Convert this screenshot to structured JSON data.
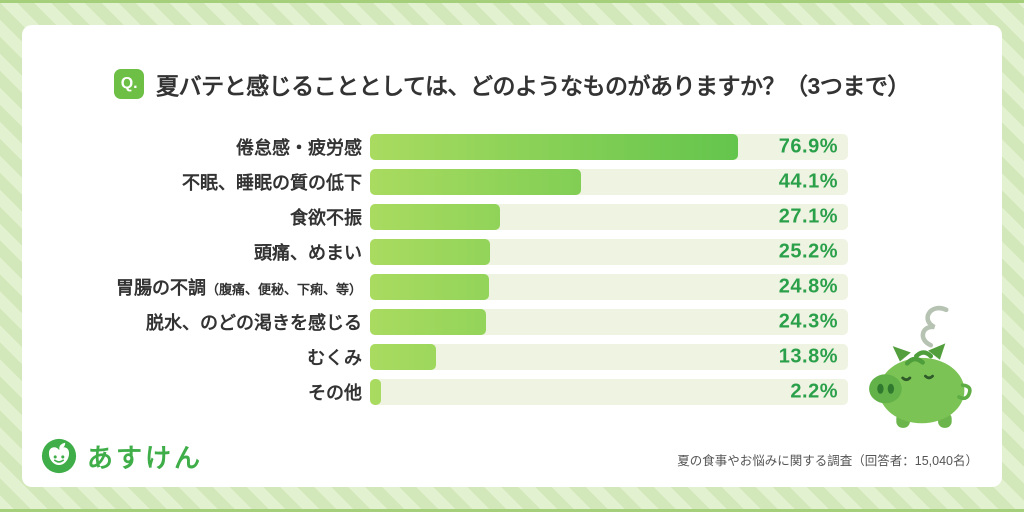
{
  "header": {
    "q_badge": "Q.",
    "title": "夏バテと感じることとしては、どのようなものがありますか？（3つまで）"
  },
  "chart_data": {
    "type": "bar",
    "orientation": "horizontal",
    "title": "夏バテと感じることとしては、どのようなものがありますか？（3つまで）",
    "categories": [
      "倦怠感・疲労感",
      "不眠、睡眠の質の低下",
      "食欲不振",
      "頭痛、めまい",
      "胃腸の不調（腹痛、便秘、下痢、等）",
      "脱水、のどの渇きを感じる",
      "むくみ",
      "その他"
    ],
    "values": [
      76.9,
      44.1,
      27.1,
      25.2,
      24.8,
      24.3,
      13.8,
      2.2
    ],
    "value_labels": [
      "76.9%",
      "44.1%",
      "27.1%",
      "25.2%",
      "24.8%",
      "24.3%",
      "13.8%",
      "2.2%"
    ],
    "xlim": [
      0,
      100
    ],
    "grid": false,
    "legend": false,
    "bar_color_start": "#a9db60",
    "bar_color_end": "#4fbe47",
    "track_color": "#eff3e1",
    "value_color": "#2ba04a"
  },
  "footer": {
    "logo_text": "あすけん",
    "source": "夏の食事やお悩みに関する調査（回答者：15,040名）"
  },
  "colors": {
    "background_stripe_light": "#e2f1cf",
    "background_stripe_dark": "#d3e8ba",
    "badge_green": "#6dbf45",
    "logo_green": "#3fae49",
    "title_text": "#333333"
  }
}
